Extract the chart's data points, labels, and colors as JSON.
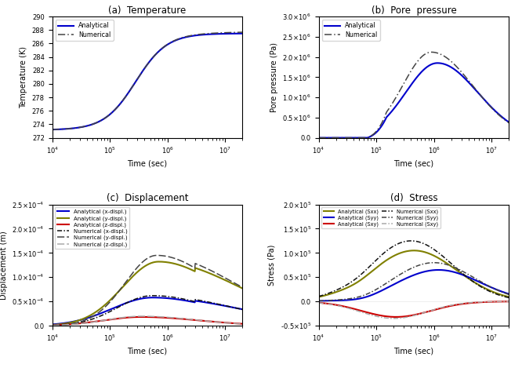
{
  "title_a": "(a)  Temperature",
  "title_b": "(b)  Pore  pressure",
  "title_c": "(c)  Displacement",
  "title_d": "(d)  Stress",
  "xlabel": "Time (sec)",
  "ylabel_a": "Temperature (K)",
  "ylabel_b": "Pore pressure (Pa)",
  "ylabel_c": "Displacement (m)",
  "ylabel_d": "Stress (Pa)",
  "t_min": 10000.0,
  "t_max": 20000000.0,
  "color_blue": "#0000cc",
  "color_dark_gray": "#444444",
  "color_light_gray": "#aaaaaa",
  "color_olive": "#808000",
  "color_red": "#cc0000",
  "color_black": "#111111",
  "color_mid_gray": "#777777"
}
